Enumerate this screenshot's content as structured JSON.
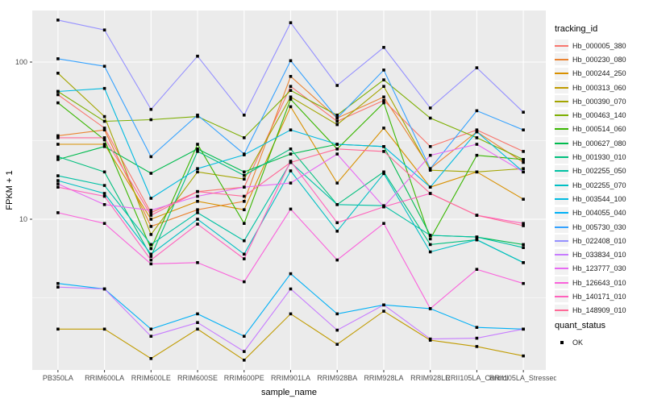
{
  "chart_data": {
    "type": "line",
    "title": "",
    "xlabel": "sample_name",
    "ylabel": "FPKM + 1",
    "y_scale": "log10",
    "y_major_ticks": [
      10,
      100
    ],
    "y_minor_gridlines": [
      3.162,
      31.62
    ],
    "ylim": [
      1.1,
      213
    ],
    "grid": "on",
    "panel_bg": "#EBEBEB",
    "gridline_color": "#FFFFFF",
    "axis_text_color": "#4D4D4D",
    "marker": {
      "shape": "filled-square",
      "color": "#000000"
    },
    "categories": [
      "PB350LA",
      "RRIM600LA",
      "RRIM600LE",
      "RRIM600SE",
      "RRIM600PE",
      "RRIM901LA",
      "RRIM928BA",
      "RRIM928LA",
      "RRIM928LE",
      "RRII105LA_Control",
      "RRII105LA_Stressed"
    ],
    "series": [
      {
        "name": "Hb_000005_380",
        "color": "#F8766D",
        "values": [
          62,
          38,
          11,
          15,
          16,
          70,
          42,
          57,
          29,
          37,
          27
        ]
      },
      {
        "name": "Hb_000230_080",
        "color": "#EA8331",
        "values": [
          34,
          37,
          9,
          11.5,
          13,
          81,
          44,
          60,
          21,
          36,
          23
        ]
      },
      {
        "name": "Hb_000244_250",
        "color": "#D89000",
        "values": [
          30,
          30,
          10,
          13,
          11.5,
          52,
          17,
          38,
          16,
          20,
          13.4
        ]
      },
      {
        "name": "Hb_000313_060",
        "color": "#C09B00",
        "values": [
          2.0,
          2.0,
          1.3,
          2.0,
          1.27,
          2.5,
          1.6,
          2.6,
          1.7,
          1.55,
          1.35
        ]
      },
      {
        "name": "Hb_000390_070",
        "color": "#A3A500",
        "values": [
          85,
          45,
          8,
          20,
          18,
          60,
          40,
          70,
          20.5,
          20,
          21
        ]
      },
      {
        "name": "Hb_000463_140",
        "color": "#7CAE00",
        "values": [
          65,
          42,
          43,
          45,
          33,
          66,
          46,
          77,
          44,
          33,
          24
        ]
      },
      {
        "name": "Hb_000514_060",
        "color": "#39B600",
        "values": [
          55,
          32,
          6.5,
          30,
          9.4,
          58,
          28,
          55,
          7.5,
          25.5,
          24
        ]
      },
      {
        "name": "Hb_000627_080",
        "color": "#00BB4E",
        "values": [
          24,
          29,
          19.6,
          28,
          20,
          26,
          30,
          29,
          7.9,
          7.7,
          6.9
        ]
      },
      {
        "name": "Hb_001930_010",
        "color": "#00BF7D",
        "values": [
          25,
          20,
          5.8,
          27,
          19,
          28,
          12.4,
          20,
          6.9,
          7.4,
          5.3
        ]
      },
      {
        "name": "Hb_002255_050",
        "color": "#00C1A3",
        "values": [
          18.9,
          16.4,
          6.9,
          11,
          7.3,
          23,
          12.4,
          12.2,
          7.9,
          7.7,
          6.6
        ]
      },
      {
        "name": "Hb_002255_070",
        "color": "#00BFC4",
        "values": [
          17.6,
          14.6,
          6.0,
          10,
          6.0,
          20.3,
          8.4,
          19.5,
          6.2,
          7.4,
          5.3
        ]
      },
      {
        "name": "Hb_003544_100",
        "color": "#00BAE0",
        "values": [
          65,
          68,
          13.6,
          21,
          25.7,
          37,
          30,
          29,
          16,
          36,
          20
        ]
      },
      {
        "name": "Hb_004055_040",
        "color": "#00B0F6",
        "values": [
          3.9,
          3.6,
          2.0,
          2.5,
          1.8,
          4.5,
          2.5,
          2.85,
          2.7,
          2.05,
          2.0
        ]
      },
      {
        "name": "Hb_005730_030",
        "color": "#35A2FF",
        "values": [
          105,
          94,
          25,
          46,
          26,
          102,
          44,
          89,
          21,
          49,
          37
        ]
      },
      {
        "name": "Hb_022408_010",
        "color": "#9590FF",
        "values": [
          185,
          160,
          50,
          109,
          46,
          178,
          71,
          124,
          51,
          92,
          48
        ]
      },
      {
        "name": "Hb_033834_010",
        "color": "#C77CFF",
        "values": [
          3.7,
          3.6,
          1.8,
          2.2,
          1.44,
          3.6,
          1.97,
          2.85,
          1.73,
          1.75,
          2.0
        ]
      },
      {
        "name": "Hb_123777_030",
        "color": "#E76BF3",
        "values": [
          16.8,
          12.4,
          11.4,
          14,
          16,
          17,
          26,
          12,
          25.5,
          30,
          20
        ]
      },
      {
        "name": "Hb_126643_010",
        "color": "#FA62DB",
        "values": [
          11,
          9.4,
          5.2,
          5.3,
          4.0,
          11.6,
          5.5,
          9.4,
          2.7,
          4.8,
          3.9
        ]
      },
      {
        "name": "Hb_140171_010",
        "color": "#FF62BC",
        "values": [
          16,
          14,
          5.5,
          9.3,
          5.6,
          23.4,
          9.5,
          12,
          14.6,
          10.6,
          9.4
        ]
      },
      {
        "name": "Hb_148909_010",
        "color": "#FF6A98",
        "values": [
          33,
          33,
          10.6,
          15,
          14,
          23,
          28,
          27,
          14.6,
          10.6,
          9.1
        ]
      }
    ],
    "legend": {
      "position": "right",
      "tracking_title": "tracking_id",
      "quant_title": "quant_status",
      "quant_label": "OK"
    }
  }
}
